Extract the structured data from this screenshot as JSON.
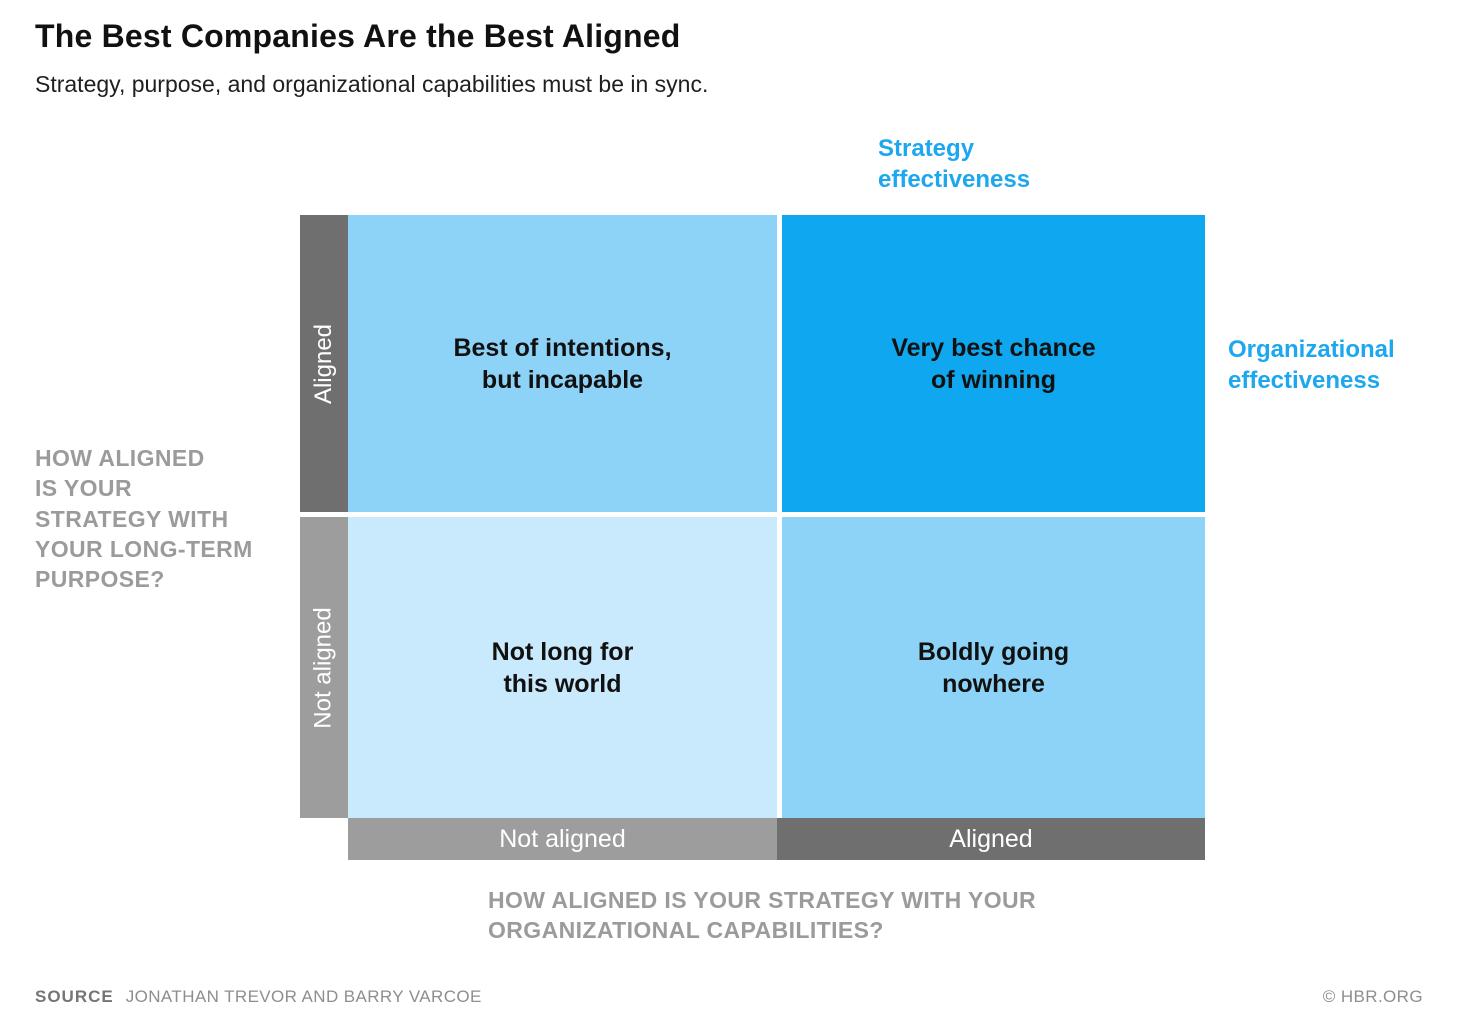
{
  "header": {
    "title": "The Best Companies Are the Best Aligned",
    "subtitle": "Strategy, purpose, and organizational capabilities must be in sync."
  },
  "axis_labels": {
    "strategy_effectiveness": "Strategy\neffectiveness",
    "organizational_effectiveness": "Organizational\neffectiveness",
    "y_question": "HOW ALIGNED\nIS YOUR\nSTRATEGY WITH\nYOUR LONG-TERM\nPURPOSE?",
    "x_question": "HOW ALIGNED IS YOUR STRATEGY WITH YOUR\nORGANIZATIONAL CAPABILITIES?",
    "y_top": "Aligned",
    "y_bottom": "Not aligned",
    "x_left": "Not aligned",
    "x_right": "Aligned"
  },
  "quadrants": {
    "top_left": {
      "label": "Best of intentions,\nbut incapable",
      "bg": "#8cd3f7"
    },
    "top_right": {
      "label": "Very best chance\nof winning",
      "bg": "#0fa7ef"
    },
    "bottom_left": {
      "label": "Not long for\nthis world",
      "bg": "#c9e9fc"
    },
    "bottom_right": {
      "label": "Boldly going\nnowhere",
      "bg": "#8cd3f7"
    }
  },
  "colors": {
    "accent_blue": "#1ca7ef",
    "bright_blue": "#0fa7ef",
    "medium_blue": "#8cd3f7",
    "pale_blue": "#c9e9fc",
    "dark_gray": "#6f6f6f",
    "medium_gray": "#9d9d9d",
    "question_gray": "#9b9b9b",
    "text_black": "#111111"
  },
  "footer": {
    "source_label": "SOURCE",
    "source_text": "JONATHAN TREVOR AND BARRY VARCOE",
    "credit": "© HBR.ORG"
  }
}
